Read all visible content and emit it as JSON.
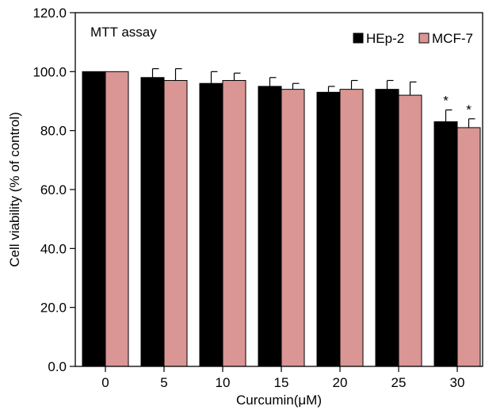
{
  "chart_data": {
    "type": "bar",
    "title": "MTT assay",
    "xlabel": "Curcumin(μM)",
    "ylabel": "Cell viability (% of control)",
    "categories": [
      "0",
      "5",
      "10",
      "15",
      "20",
      "25",
      "30"
    ],
    "ylim": [
      0,
      120
    ],
    "yticks": [
      "0.0",
      "20.0",
      "40.0",
      "60.0",
      "80.0",
      "100.0",
      "120.0"
    ],
    "ytick_values": [
      0,
      20,
      40,
      60,
      80,
      100,
      120
    ],
    "grid": false,
    "legend_position": "top-right",
    "series": [
      {
        "name": "HEp-2",
        "color": "#000000",
        "values": [
          100,
          98,
          96,
          95,
          93,
          94,
          83
        ],
        "errors": [
          0,
          3,
          4,
          3,
          2,
          3,
          4
        ],
        "significance": [
          "",
          "",
          "",
          "",
          "",
          "",
          "*"
        ]
      },
      {
        "name": "MCF-7",
        "color": "#d99694",
        "values": [
          100,
          97,
          97,
          94,
          94,
          92,
          81
        ],
        "errors": [
          0,
          4,
          2.5,
          2,
          3,
          4.5,
          3
        ],
        "significance": [
          "",
          "",
          "",
          "",
          "",
          "",
          "*"
        ]
      }
    ]
  }
}
